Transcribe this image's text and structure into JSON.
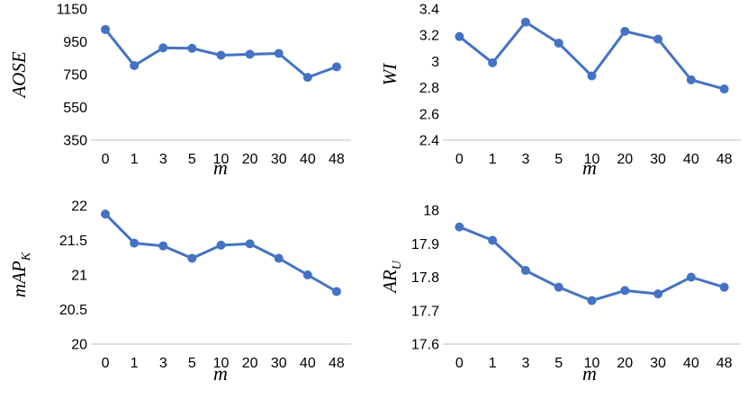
{
  "chart_data": [
    {
      "type": "line",
      "categories": [
        "0",
        "1",
        "3",
        "5",
        "10",
        "20",
        "30",
        "40",
        "48"
      ],
      "series": [
        {
          "values": [
            1025,
            805,
            913,
            910,
            868,
            874,
            879,
            733,
            797
          ]
        }
      ],
      "ylabel": "AOSE",
      "ylabel_sub": "",
      "xlabel": "m",
      "ylim": [
        350,
        1150
      ],
      "yticks": [
        350,
        550,
        750,
        950,
        1150
      ],
      "ytick_labels": [
        "350",
        "550",
        "750",
        "950",
        "1150"
      ],
      "grid": false,
      "color": "#4472C4"
    },
    {
      "type": "line",
      "categories": [
        "0",
        "1",
        "3",
        "5",
        "10",
        "20",
        "30",
        "40",
        "48"
      ],
      "series": [
        {
          "values": [
            3.19,
            2.99,
            3.3,
            3.14,
            2.89,
            3.23,
            3.17,
            2.86,
            2.79
          ]
        }
      ],
      "ylabel": "WI",
      "ylabel_sub": "",
      "xlabel": "m",
      "ylim": [
        2.4,
        3.4
      ],
      "yticks": [
        2.4,
        2.6,
        2.8,
        3.0,
        3.2,
        3.4
      ],
      "ytick_labels": [
        "2.4",
        "2.6",
        "2.8",
        "3",
        "3.2",
        "3.4"
      ],
      "grid": false,
      "color": "#4472C4"
    },
    {
      "type": "line",
      "categories": [
        "0",
        "1",
        "3",
        "5",
        "10",
        "20",
        "30",
        "40",
        "48"
      ],
      "series": [
        {
          "values": [
            21.88,
            21.46,
            21.42,
            21.24,
            21.43,
            21.45,
            21.24,
            21.0,
            20.76
          ]
        }
      ],
      "ylabel": "mAP",
      "ylabel_sub": "K",
      "xlabel": "m",
      "ylim": [
        20,
        22
      ],
      "yticks": [
        20,
        20.5,
        21,
        21.5,
        22
      ],
      "ytick_labels": [
        "20",
        "20.5",
        "21",
        "21.5",
        "22"
      ],
      "grid": false,
      "color": "#4472C4"
    },
    {
      "type": "line",
      "categories": [
        "0",
        "1",
        "3",
        "5",
        "10",
        "20",
        "30",
        "40",
        "48"
      ],
      "series": [
        {
          "values": [
            17.95,
            17.91,
            17.82,
            17.77,
            17.73,
            17.76,
            17.75,
            17.8,
            17.77
          ]
        }
      ],
      "ylabel": "AR",
      "ylabel_sub": "U",
      "xlabel": "m",
      "ylim": [
        17.6,
        18.0
      ],
      "yticks": [
        17.6,
        17.7,
        17.8,
        17.9,
        18.0
      ],
      "ytick_labels": [
        "17.6",
        "17.7",
        "17.8",
        "17.9",
        "18"
      ],
      "grid": false,
      "color": "#4472C4"
    }
  ]
}
